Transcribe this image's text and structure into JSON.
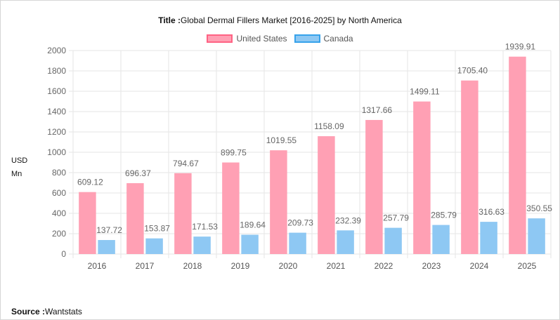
{
  "title": {
    "prefix": "Title :",
    "text": "Global Dermal Fillers Market [2016-2025] by North America"
  },
  "source": {
    "prefix": "Source :",
    "text": "Wantstats"
  },
  "colors": {
    "united_states_fill": "#ffa0b4",
    "united_states_border": "#ff6384",
    "canada_fill": "#8ec8f3",
    "canada_border": "#36a2eb",
    "grid": "#e6e6e6",
    "axis_text": "#666666"
  },
  "chart_data": {
    "type": "bar",
    "categories": [
      "2016",
      "2017",
      "2018",
      "2019",
      "2020",
      "2021",
      "2022",
      "2023",
      "2024",
      "2025"
    ],
    "series": [
      {
        "name": "United States",
        "values": [
          609.12,
          696.37,
          794.67,
          899.75,
          1019.55,
          1158.09,
          1317.66,
          1499.11,
          1705.4,
          1939.91
        ],
        "labels": [
          "609.12",
          "696.37",
          "794.67",
          "899.75",
          "1019.55",
          "1158.09",
          "1317.66",
          "1499.11",
          "1705.40",
          "1939.91"
        ]
      },
      {
        "name": "Canada",
        "values": [
          137.72,
          153.87,
          171.53,
          189.64,
          209.73,
          232.39,
          257.79,
          285.79,
          316.63,
          350.55
        ],
        "labels": [
          "137.72",
          "153.87",
          "171.53",
          "189.64",
          "209.73",
          "232.39",
          "257.79",
          "285.79",
          "316.63",
          "350.55"
        ]
      }
    ],
    "ylabel_lines": [
      "USD",
      "Mn"
    ],
    "ylim": [
      0,
      2000
    ],
    "yticks": [
      "0",
      "200",
      "400",
      "600",
      "800",
      "1000",
      "1200",
      "1400",
      "1600",
      "1800",
      "2000"
    ],
    "grid": true,
    "legend_position": "top-center"
  }
}
